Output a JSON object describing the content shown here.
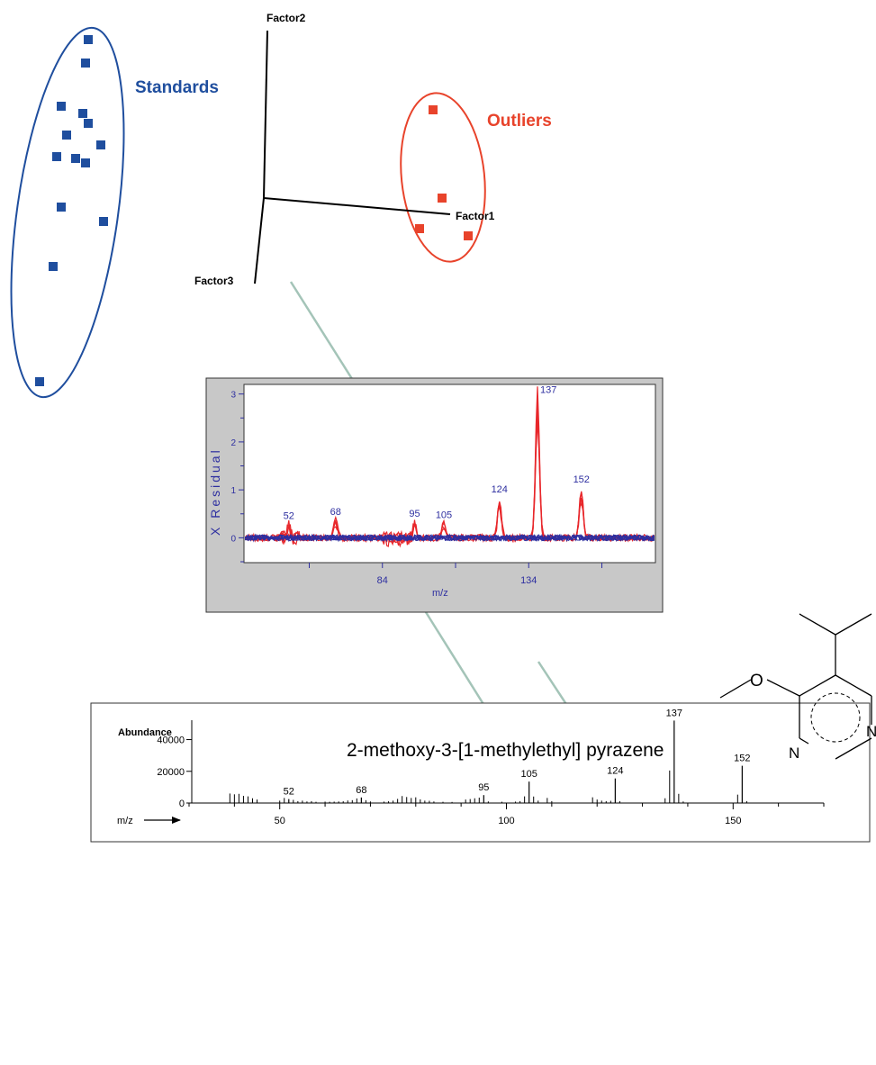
{
  "score_plot": {
    "axis_labels": {
      "factor1": "Factor1",
      "factor2": "Factor2",
      "factor3": "Factor3"
    },
    "groups": {
      "standards": "Standards",
      "outliers": "Outliers"
    },
    "colors": {
      "standards": "#1f4e9e",
      "outliers": "#e8432b"
    }
  },
  "residual_chart": {
    "ylabel": "X Residual",
    "xlabel": "m/z",
    "y_ticks": [
      "0",
      "1",
      "2",
      "3"
    ],
    "x_ticks": [
      "84",
      "134"
    ],
    "peak_labels": [
      "52",
      "68",
      "95",
      "105",
      "124",
      "137",
      "152"
    ],
    "colors": {
      "spectrum_red": "#e8272b",
      "spectrum_blue": "#2e2fa0",
      "panel_bg": "#c8c8c8"
    }
  },
  "mass_spectrum": {
    "ylabel": "Abundance",
    "xlabel": "m/z",
    "y_ticks": [
      "0",
      "20000",
      "40000"
    ],
    "x_ticks": [
      "50",
      "100",
      "150"
    ],
    "peak_labels": [
      "52",
      "68",
      "95",
      "105",
      "124",
      "137",
      "152"
    ]
  },
  "molecule": {
    "name": "2-methoxy-3-[1-methylethyl] pyrazene",
    "atoms": {
      "oxygen": "O",
      "nitrogen_top": "N",
      "nitrogen_bottom": "N"
    }
  },
  "chart_data": [
    {
      "type": "scatter",
      "title": "",
      "series": [
        {
          "name": "Standards",
          "points": [
            [
              98,
              44
            ],
            [
              95,
              70
            ],
            [
              68,
              118
            ],
            [
              92,
              126
            ],
            [
              98,
              137
            ],
            [
              74,
              150
            ],
            [
              112,
              161
            ],
            [
              63,
              174
            ],
            [
              84,
              176
            ],
            [
              95,
              181
            ],
            [
              68,
              230
            ],
            [
              115,
              246
            ],
            [
              59,
              296
            ],
            [
              44,
              424
            ]
          ]
        },
        {
          "name": "Outliers",
          "points": [
            [
              481,
              122
            ],
            [
              491,
              220
            ],
            [
              466,
              254
            ],
            [
              520,
              262
            ]
          ]
        }
      ]
    },
    {
      "type": "line",
      "xlabel": "m/z",
      "ylabel": "X Residual",
      "xlim": [
        37,
        177
      ],
      "ylim": [
        -0.5,
        3.2
      ],
      "peaks": [
        {
          "mz": 52,
          "value": 0.28
        },
        {
          "mz": 68,
          "value": 0.36
        },
        {
          "mz": 95,
          "value": 0.33
        },
        {
          "mz": 105,
          "value": 0.3
        },
        {
          "mz": 124,
          "value": 0.8
        },
        {
          "mz": 137,
          "value": 3.1
        },
        {
          "mz": 152,
          "value": 1.0
        }
      ]
    },
    {
      "type": "bar",
      "xlabel": "m/z",
      "ylabel": "Abundance",
      "xlim": [
        30,
        170
      ],
      "ylim": [
        0,
        48000
      ],
      "peaks": [
        {
          "mz": 52,
          "value": 2500
        },
        {
          "mz": 68,
          "value": 3500
        },
        {
          "mz": 95,
          "value": 5000
        },
        {
          "mz": 105,
          "value": 13500
        },
        {
          "mz": 124,
          "value": 15500
        },
        {
          "mz": 137,
          "value": 52000
        },
        {
          "mz": 152,
          "value": 23500
        }
      ]
    }
  ]
}
